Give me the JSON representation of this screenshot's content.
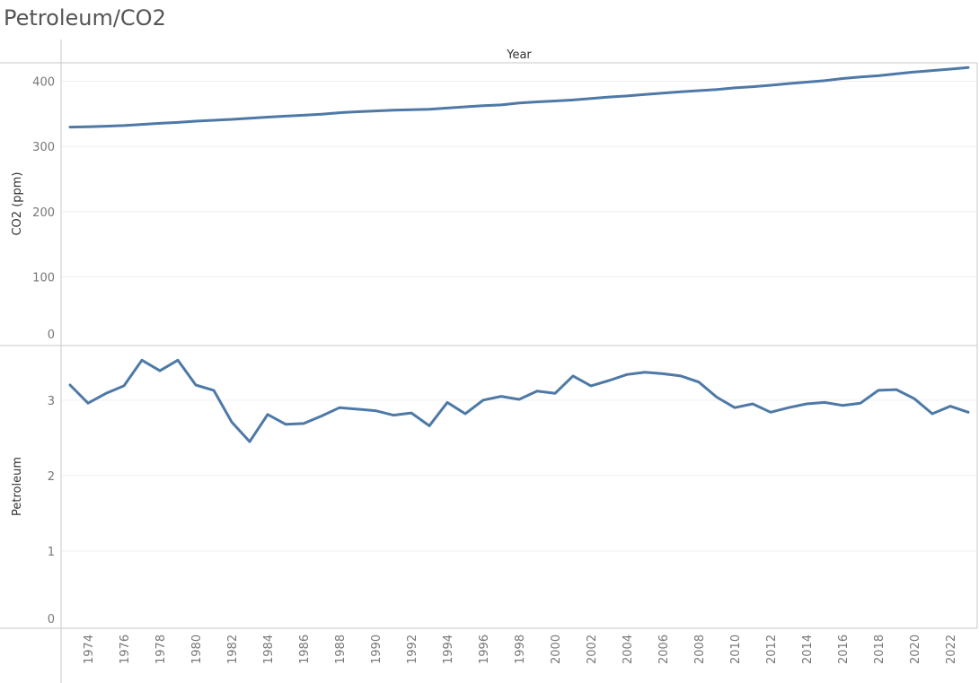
{
  "title": "Petroleum/CO2",
  "colors": {
    "line": "#4e79a7",
    "grid": "#efefef",
    "axis": "#c8c8c8",
    "text": "#777777"
  },
  "chart_data": {
    "type": "line",
    "x_header": "Year",
    "x": [
      1973,
      1974,
      1975,
      1976,
      1977,
      1978,
      1979,
      1980,
      1981,
      1982,
      1983,
      1984,
      1985,
      1986,
      1987,
      1988,
      1989,
      1990,
      1991,
      1992,
      1993,
      1994,
      1995,
      1996,
      1997,
      1998,
      1999,
      2000,
      2001,
      2002,
      2003,
      2004,
      2005,
      2006,
      2007,
      2008,
      2009,
      2010,
      2011,
      2012,
      2013,
      2014,
      2015,
      2016,
      2017,
      2018,
      2019,
      2020,
      2021,
      2022,
      2023
    ],
    "x_tick_labels": [
      "1974",
      "1976",
      "1978",
      "1980",
      "1982",
      "1984",
      "1986",
      "1988",
      "1990",
      "1992",
      "1994",
      "1996",
      "1998",
      "2000",
      "2002",
      "2004",
      "2006",
      "2008",
      "2010",
      "2012",
      "2014",
      "2016",
      "2018",
      "2020",
      "2022"
    ],
    "panels": [
      {
        "ylabel": "CO2 (ppm)",
        "ylim": [
          0,
          420
        ],
        "y_ticks": [
          0,
          100,
          200,
          300,
          400
        ],
        "series": [
          {
            "values": [
              329.7,
              330.2,
              331.1,
              332.0,
              333.8,
              335.4,
              336.8,
              338.7,
              340.1,
              341.5,
              343.2,
              344.9,
              346.4,
              347.8,
              349.3,
              351.7,
              353.2,
              354.4,
              355.6,
              356.4,
              357.1,
              358.8,
              360.8,
              362.6,
              363.7,
              366.7,
              368.4,
              369.7,
              371.3,
              373.5,
              375.8,
              377.5,
              379.8,
              381.9,
              383.8,
              385.6,
              387.4,
              389.9,
              391.7,
              393.9,
              396.5,
              398.7,
              400.8,
              404.2,
              406.5,
              408.5,
              411.4,
              414.2,
              416.4,
              418.6,
              421.1
            ]
          }
        ]
      },
      {
        "ylabel": "Petroleum",
        "ylim": [
          0,
          3.7
        ],
        "y_ticks": [
          0,
          1,
          2,
          3
        ],
        "series": [
          {
            "values": [
              3.2,
              2.96,
              3.09,
              3.19,
              3.53,
              3.39,
              3.53,
              3.2,
              3.13,
              2.71,
              2.45,
              2.81,
              2.68,
              2.69,
              2.79,
              2.9,
              2.88,
              2.86,
              2.8,
              2.83,
              2.66,
              2.97,
              2.82,
              3.0,
              3.05,
              3.01,
              3.12,
              3.09,
              3.32,
              3.19,
              3.26,
              3.34,
              3.37,
              3.35,
              3.32,
              3.24,
              3.04,
              2.9,
              2.95,
              2.84,
              2.9,
              2.95,
              2.97,
              2.93,
              2.96,
              3.13,
              3.14,
              3.02,
              2.82,
              2.92,
              2.84
            ]
          }
        ]
      }
    ]
  }
}
